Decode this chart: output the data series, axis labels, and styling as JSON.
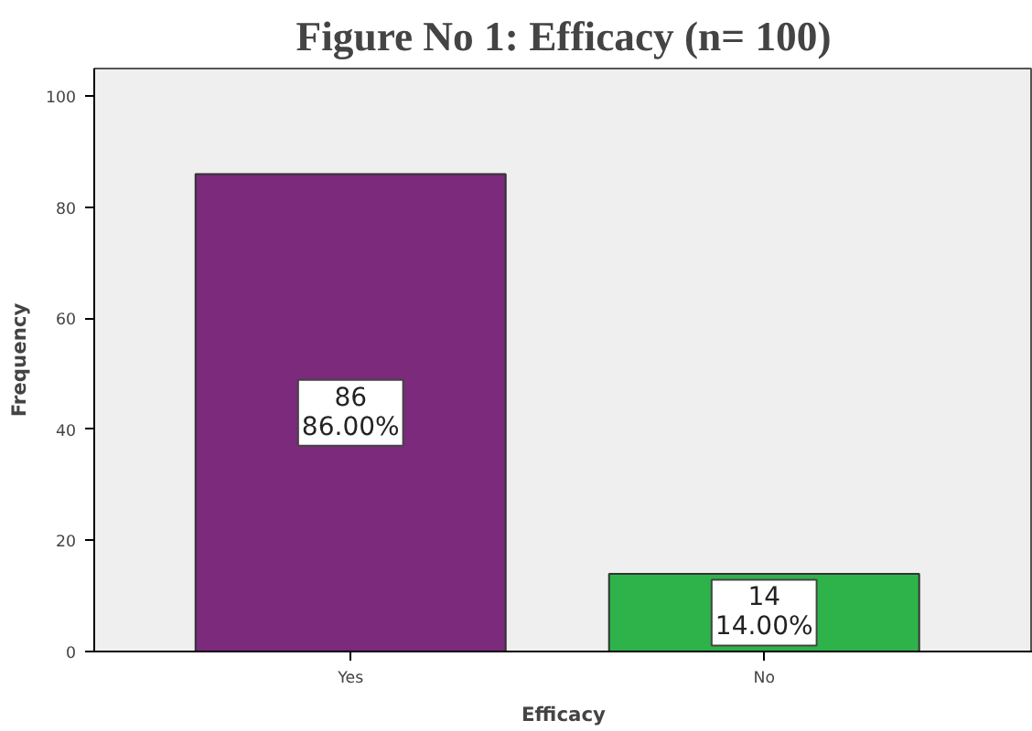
{
  "chart_data": {
    "type": "bar",
    "title": "Figure No 1: Efficacy (n= 100)",
    "xlabel": "Efficacy",
    "ylabel": "Frequency",
    "categories": [
      "Yes",
      "No"
    ],
    "values": [
      86,
      14
    ],
    "colors": [
      "#7b2a7c",
      "#2db34a"
    ],
    "value_labels": [
      "86\n86.00%",
      "14\n14.00%"
    ],
    "ylim": [
      0,
      105
    ],
    "yticks": [
      0,
      20,
      40,
      60,
      80,
      100
    ],
    "grid": false
  }
}
